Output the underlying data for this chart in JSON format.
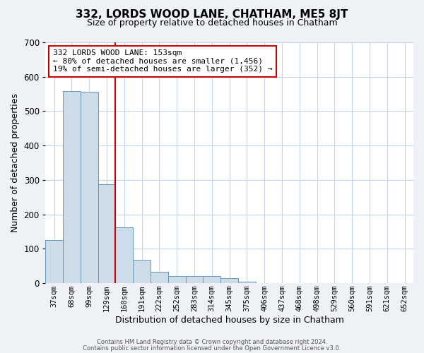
{
  "title": "332, LORDS WOOD LANE, CHATHAM, ME5 8JT",
  "subtitle": "Size of property relative to detached houses in Chatham",
  "xlabel": "Distribution of detached houses by size in Chatham",
  "ylabel": "Number of detached properties",
  "bar_labels": [
    "37sqm",
    "68sqm",
    "99sqm",
    "129sqm",
    "160sqm",
    "191sqm",
    "222sqm",
    "252sqm",
    "283sqm",
    "314sqm",
    "345sqm",
    "375sqm",
    "406sqm",
    "437sqm",
    "468sqm",
    "498sqm",
    "529sqm",
    "560sqm",
    "591sqm",
    "621sqm",
    "652sqm"
  ],
  "bar_values": [
    125,
    558,
    557,
    288,
    163,
    68,
    33,
    20,
    20,
    20,
    15,
    5,
    0,
    0,
    0,
    0,
    0,
    0,
    0,
    0,
    0
  ],
  "bar_color": "#ccdce8",
  "bar_edge_color": "#6699bb",
  "vline_color": "#cc0000",
  "annotation_title": "332 LORDS WOOD LANE: 153sqm",
  "annotation_line1": "← 80% of detached houses are smaller (1,456)",
  "annotation_line2": "19% of semi-detached houses are larger (352) →",
  "annotation_box_facecolor": "#ffffff",
  "annotation_box_edgecolor": "#cc0000",
  "ylim": [
    0,
    700
  ],
  "yticks": [
    0,
    100,
    200,
    300,
    400,
    500,
    600,
    700
  ],
  "footer1": "Contains HM Land Registry data © Crown copyright and database right 2024.",
  "footer2": "Contains public sector information licensed under the Open Government Licence v3.0.",
  "bg_color": "#eef2f6",
  "plot_bg_color": "#ffffff",
  "grid_color": "#c5d5e5",
  "title_fontsize": 11,
  "subtitle_fontsize": 9,
  "xlabel_fontsize": 9,
  "ylabel_fontsize": 9,
  "tick_fontsize": 7.5,
  "annotation_fontsize": 8,
  "footer_fontsize": 6
}
